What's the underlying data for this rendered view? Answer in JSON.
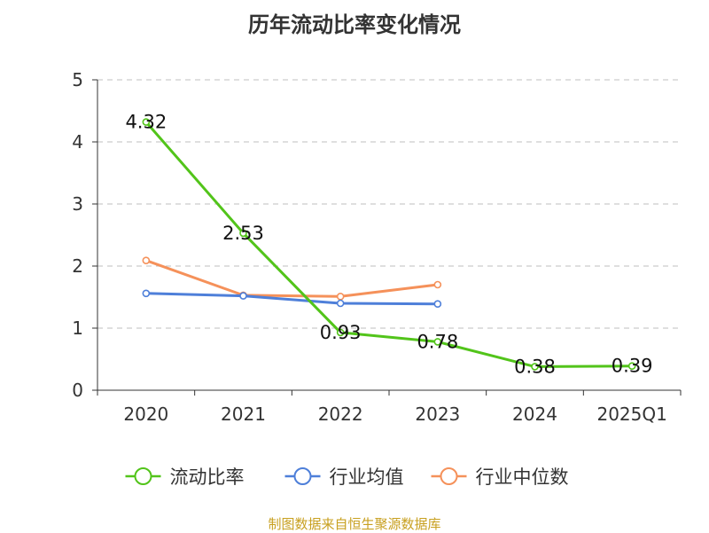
{
  "source_note": "制图数据来自恒生聚源数据库",
  "chart_data": {
    "type": "line",
    "title": "历年流动比率变化情况",
    "categories": [
      "2020",
      "2021",
      "2022",
      "2023",
      "2024",
      "2025Q1"
    ],
    "ylim": [
      0,
      5
    ],
    "yticks": [
      "0",
      "1",
      "2",
      "3",
      "4",
      "5"
    ],
    "grid": true,
    "legend_position": "bottom",
    "series": [
      {
        "name": "流动比率",
        "color": "#52c41a",
        "values": [
          4.32,
          2.53,
          0.93,
          0.78,
          0.38,
          0.39
        ],
        "labels": [
          "4.32",
          "2.53",
          "0.93",
          "0.78",
          "0.38",
          "0.39"
        ]
      },
      {
        "name": "行业均值",
        "color": "#4e7fd9",
        "values": [
          1.56,
          1.52,
          1.4,
          1.39,
          null,
          null
        ]
      },
      {
        "name": "行业中位数",
        "color": "#f5915a",
        "values": [
          2.09,
          1.53,
          1.51,
          1.7,
          null,
          null
        ]
      }
    ]
  }
}
